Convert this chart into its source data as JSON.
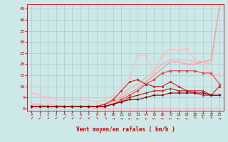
{
  "background_color": "#cce8e8",
  "grid_color": "#aacccc",
  "xlim": [
    -0.5,
    23.5
  ],
  "ylim": [
    -1,
    47
  ],
  "xticks": [
    0,
    1,
    2,
    3,
    4,
    5,
    6,
    7,
    8,
    9,
    10,
    11,
    12,
    13,
    14,
    15,
    16,
    17,
    18,
    19,
    20,
    21,
    22,
    23
  ],
  "yticks": [
    0,
    5,
    10,
    15,
    20,
    25,
    30,
    35,
    40,
    45
  ],
  "xlabel": "Vent moyen/en rafales ( km/h )",
  "xlabel_color": "#cc0000",
  "tick_color": "#cc0000",
  "series": [
    {
      "x": [
        0,
        1,
        2,
        3,
        4,
        5,
        6,
        7,
        8,
        9,
        10,
        11,
        12,
        13,
        14,
        15,
        16,
        17,
        18,
        19,
        20,
        21,
        22,
        23
      ],
      "y": [
        7,
        6,
        2,
        1.5,
        1,
        1,
        1,
        0.5,
        0,
        0,
        0,
        0,
        0,
        0,
        0,
        0,
        0,
        0,
        0,
        0,
        0,
        0,
        0,
        0
      ],
      "color": "#ffbbbb",
      "lw": 0.8,
      "marker": "o",
      "ms": 2.0,
      "zorder": 3
    },
    {
      "x": [
        0,
        1,
        2,
        3,
        4,
        5,
        6,
        7,
        8,
        9,
        10,
        11,
        12,
        13,
        14,
        15,
        16,
        17,
        18,
        19,
        20,
        21,
        22,
        23
      ],
      "y": [
        7,
        6,
        5,
        4,
        4,
        4,
        4,
        4,
        3,
        4,
        6,
        10,
        14,
        24,
        24,
        16,
        24,
        27,
        26,
        27,
        22,
        21,
        15,
        15
      ],
      "color": "#ffbbbb",
      "lw": 0.8,
      "marker": "D",
      "ms": 2.0,
      "zorder": 3
    },
    {
      "x": [
        0,
        1,
        2,
        3,
        4,
        5,
        6,
        7,
        8,
        9,
        10,
        11,
        12,
        13,
        14,
        15,
        16,
        17,
        18,
        19,
        20,
        21,
        22,
        23
      ],
      "y": [
        2,
        2,
        1,
        1,
        1,
        1,
        1,
        1,
        1,
        2,
        3,
        5,
        7,
        9,
        12,
        15,
        18,
        21,
        21,
        20,
        20,
        21,
        22,
        46
      ],
      "color": "#ff9999",
      "lw": 1.0,
      "marker": null,
      "ms": 0,
      "zorder": 2
    },
    {
      "x": [
        0,
        1,
        2,
        3,
        4,
        5,
        6,
        7,
        8,
        9,
        10,
        11,
        12,
        13,
        14,
        15,
        16,
        17,
        18,
        19,
        20,
        21,
        22,
        23
      ],
      "y": [
        2,
        2,
        1,
        1,
        1,
        1,
        1,
        1,
        1,
        2,
        4,
        6,
        9,
        11,
        14,
        17,
        20,
        22,
        22,
        22,
        21,
        21,
        20,
        46
      ],
      "color": "#ffaaaa",
      "lw": 0.8,
      "marker": null,
      "ms": 0,
      "zorder": 2
    },
    {
      "x": [
        0,
        1,
        2,
        3,
        4,
        5,
        6,
        7,
        8,
        9,
        10,
        11,
        12,
        13,
        14,
        15,
        16,
        17,
        18,
        19,
        20,
        21,
        22,
        23
      ],
      "y": [
        1,
        1,
        1,
        1,
        1,
        1,
        1,
        1,
        1,
        1,
        2,
        4,
        6,
        8,
        11,
        13,
        16,
        17,
        17,
        17,
        17,
        16,
        16,
        11
      ],
      "color": "#dd4444",
      "lw": 0.8,
      "marker": "o",
      "ms": 2.0,
      "zorder": 3
    },
    {
      "x": [
        0,
        1,
        2,
        3,
        4,
        5,
        6,
        7,
        8,
        9,
        10,
        11,
        12,
        13,
        14,
        15,
        16,
        17,
        18,
        19,
        20,
        21,
        22,
        23
      ],
      "y": [
        1,
        1,
        1,
        1,
        1,
        1,
        1,
        1,
        1,
        2,
        4,
        8,
        12,
        13,
        11,
        10,
        10,
        12,
        10,
        8,
        7,
        6,
        6,
        10
      ],
      "color": "#cc2222",
      "lw": 0.8,
      "marker": "s",
      "ms": 2.0,
      "zorder": 3
    },
    {
      "x": [
        0,
        1,
        2,
        3,
        4,
        5,
        6,
        7,
        8,
        9,
        10,
        11,
        12,
        13,
        14,
        15,
        16,
        17,
        18,
        19,
        20,
        21,
        22,
        23
      ],
      "y": [
        1,
        1,
        1,
        1,
        1,
        1,
        1,
        1,
        1,
        1,
        2,
        3,
        5,
        6,
        7,
        8,
        8,
        9,
        8,
        8,
        8,
        8,
        6,
        6
      ],
      "color": "#bb1111",
      "lw": 0.8,
      "marker": "+",
      "ms": 2.5,
      "zorder": 3
    },
    {
      "x": [
        0,
        1,
        2,
        3,
        4,
        5,
        6,
        7,
        8,
        9,
        10,
        11,
        12,
        13,
        14,
        15,
        16,
        17,
        18,
        19,
        20,
        21,
        22,
        23
      ],
      "y": [
        1,
        1,
        1,
        1,
        1,
        1,
        1,
        1,
        1,
        1,
        2,
        3,
        4,
        4,
        5,
        6,
        6,
        7,
        7,
        7,
        7,
        7,
        6,
        6
      ],
      "color": "#880000",
      "lw": 0.8,
      "marker": "v",
      "ms": 2.0,
      "zorder": 3
    }
  ],
  "wind_arrows": [
    {
      "x": 0,
      "sym": "↙"
    },
    {
      "x": 1,
      "sym": "↙"
    },
    {
      "x": 2,
      "sym": "↙"
    },
    {
      "x": 3,
      "sym": "↙"
    },
    {
      "x": 4,
      "sym": "↙"
    },
    {
      "x": 5,
      "sym": "↙"
    },
    {
      "x": 6,
      "sym": "↙"
    },
    {
      "x": 7,
      "sym": "↙"
    },
    {
      "x": 8,
      "sym": "↘"
    },
    {
      "x": 9,
      "sym": "↘"
    },
    {
      "x": 10,
      "sym": "→"
    },
    {
      "x": 11,
      "sym": "→"
    },
    {
      "x": 12,
      "sym": "←"
    },
    {
      "x": 13,
      "sym": "←"
    },
    {
      "x": 14,
      "sym": "←"
    },
    {
      "x": 15,
      "sym": "←"
    },
    {
      "x": 16,
      "sym": "←"
    },
    {
      "x": 17,
      "sym": "←"
    },
    {
      "x": 18,
      "sym": "←"
    },
    {
      "x": 19,
      "sym": "←"
    },
    {
      "x": 20,
      "sym": "↖"
    },
    {
      "x": 21,
      "sym": "↖"
    },
    {
      "x": 22,
      "sym": "↖"
    },
    {
      "x": 23,
      "sym": "→"
    }
  ]
}
